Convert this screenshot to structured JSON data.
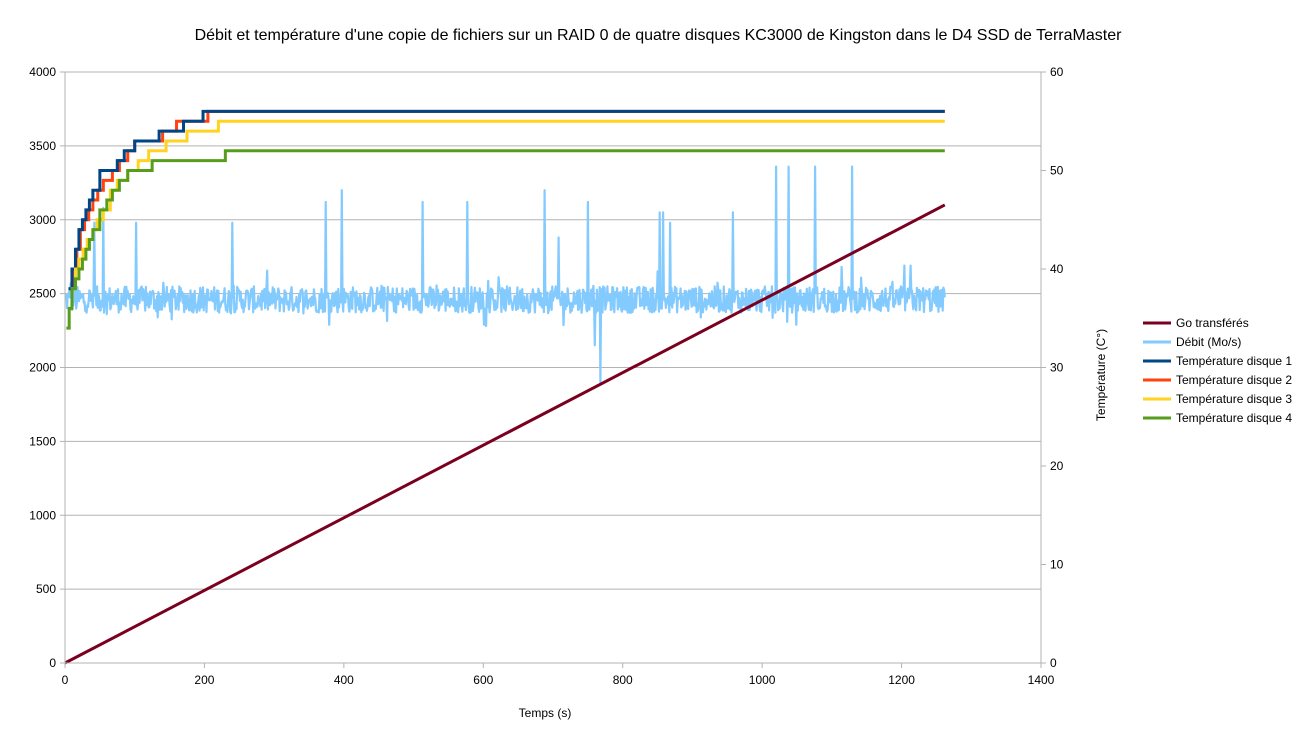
{
  "chart_data": {
    "type": "line",
    "title": "Débit et température d'une copie de fichiers sur un RAID 0 de quatre disques KC3000 de Kingston dans le D4 SSD de TerraMaster",
    "xlabel": "Temps (s)",
    "ylabel": "",
    "y2label": "Température (C°)",
    "xlim": [
      0,
      1400
    ],
    "ylim": [
      0,
      4000
    ],
    "y2lim": [
      0,
      60
    ],
    "x_ticks": [
      "0",
      "200",
      "400",
      "600",
      "800",
      "1000",
      "1200",
      "1400"
    ],
    "y_ticks": [
      "0",
      "500",
      "1000",
      "1500",
      "2000",
      "2500",
      "3000",
      "3500",
      "4000"
    ],
    "y2_ticks": [
      "0",
      "10",
      "20",
      "30",
      "40",
      "50",
      "60"
    ],
    "grid": true,
    "legend_position": "right",
    "series": [
      {
        "name": "Go transférés",
        "axis": "left",
        "color": "#7b0020",
        "x": [
          0,
          1262
        ],
        "y": [
          0,
          3100
        ]
      },
      {
        "name": "Débit (Mo/s)",
        "axis": "left",
        "color": "#83caff",
        "x_range": [
          0,
          1262
        ],
        "baseline": 2460,
        "spikes": [
          [
            8,
            2570
          ],
          [
            42,
            2980
          ],
          [
            55,
            3080
          ],
          [
            102,
            2980
          ],
          [
            240,
            2980
          ],
          [
            374,
            3120
          ],
          [
            397,
            3200
          ],
          [
            513,
            3120
          ],
          [
            577,
            3120
          ],
          [
            688,
            3200
          ],
          [
            708,
            2880
          ],
          [
            750,
            3120
          ],
          [
            760,
            2150
          ],
          [
            768,
            1900
          ],
          [
            853,
            3050
          ],
          [
            858,
            3050
          ],
          [
            868,
            2980
          ],
          [
            958,
            3050
          ],
          [
            1020,
            3360
          ],
          [
            1038,
            3360
          ],
          [
            1076,
            3360
          ],
          [
            1114,
            2680
          ],
          [
            1129,
            3360
          ],
          [
            1204,
            2690
          ],
          [
            1213,
            2690
          ]
        ]
      },
      {
        "name": "Température disque 1",
        "axis": "right",
        "color": "#004586",
        "x": [
          5,
          10,
          15,
          20,
          25,
          30,
          35,
          40,
          50,
          60,
          75,
          85,
          100,
          115,
          135,
          155,
          170,
          198,
          215,
          1262
        ],
        "y": [
          38,
          40,
          42,
          44,
          45,
          46,
          47,
          48,
          50,
          50,
          51,
          52,
          53,
          53,
          54,
          54,
          55,
          56,
          56,
          56
        ]
      },
      {
        "name": "Température disque 2",
        "axis": "right",
        "color": "#ff420e",
        "x": [
          5,
          12,
          17,
          22,
          28,
          34,
          40,
          47,
          55,
          68,
          78,
          90,
          100,
          120,
          140,
          160,
          180,
          205,
          215,
          1262
        ],
        "y": [
          38,
          40,
          42,
          44,
          45,
          46,
          47,
          48,
          49,
          50,
          51,
          52,
          53,
          53,
          54,
          55,
          55,
          56,
          56,
          56
        ]
      },
      {
        "name": "Température disque 3",
        "axis": "right",
        "color": "#ffd320",
        "x": [
          8,
          15,
          20,
          26,
          32,
          40,
          46,
          55,
          65,
          75,
          90,
          105,
          120,
          145,
          160,
          175,
          200,
          220,
          1262
        ],
        "y": [
          38,
          40,
          41,
          42,
          43,
          44,
          45,
          46,
          48,
          49,
          50,
          51,
          52,
          53,
          53,
          54,
          54,
          55,
          55
        ]
      },
      {
        "name": "Température disque 4",
        "axis": "right",
        "color": "#579d1c",
        "x": [
          2,
          6,
          10,
          15,
          20,
          25,
          30,
          35,
          40,
          50,
          60,
          68,
          78,
          90,
          115,
          125,
          160,
          230,
          1262
        ],
        "y": [
          34,
          36,
          38,
          39,
          40,
          41,
          42,
          43,
          44,
          46,
          47,
          48,
          49,
          50,
          50,
          51,
          51,
          52,
          52
        ]
      }
    ]
  }
}
